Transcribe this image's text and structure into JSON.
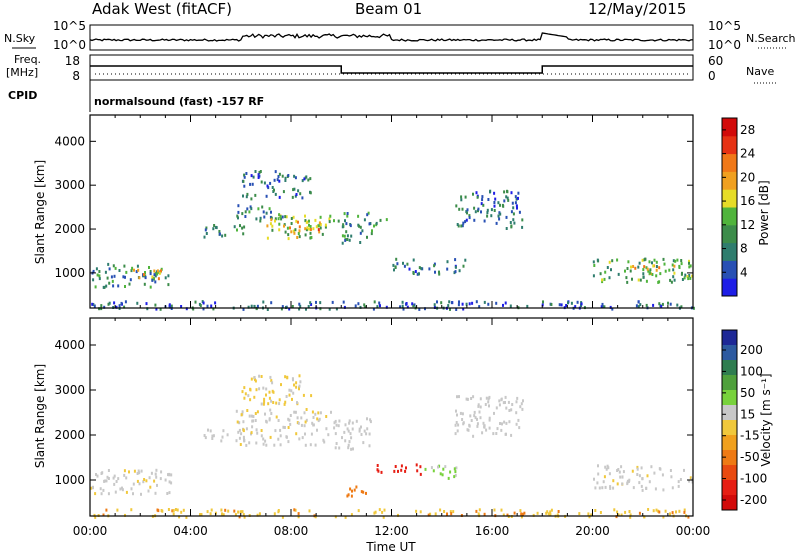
{
  "header": {
    "station": "Adak West (fitACF)",
    "beam": "Beam 01",
    "date": "12/May/2015"
  },
  "panels": {
    "nsky_label": "N.Sky",
    "nsearch_label": "N.Search",
    "freq_label_line1": "Freq.",
    "freq_label_line2": "[MHz]",
    "nave_label": "Nave",
    "cpid_label": "CPID",
    "nsky_ticks": [
      "10^5",
      "10^0"
    ],
    "nsearch_ticks": [
      "10^5",
      "10^0"
    ],
    "freq_ticks": [
      "18",
      "8"
    ],
    "nave_ticks": [
      "60",
      "0"
    ],
    "cpid_text": "normalsound (fast) -157 RF"
  },
  "colors": {
    "power_scale": [
      "#1e1ee6",
      "#2850b4",
      "#2f7d6e",
      "#3c8c4a",
      "#50b43c",
      "#e6dc28",
      "#f0a020",
      "#f07818",
      "#e63214",
      "#d20a0a"
    ],
    "velocity_scale": [
      "#1e2896",
      "#2d5aa0",
      "#2f7d50",
      "#4fa03c",
      "#78d23c",
      "#c8c8c8",
      "#f0c83c",
      "#f0a01e",
      "#ee7a14",
      "#e84a10",
      "#e61e14",
      "#d20a0a"
    ]
  },
  "chart_data": [
    {
      "type": "heatmap",
      "name": "Power",
      "ylabel": "Slant Range [km]",
      "xlabel": "",
      "x_ticks": [
        "00:00",
        "04:00",
        "08:00",
        "12:00",
        "16:00",
        "20:00",
        "00:00"
      ],
      "y_ticks": [
        1000,
        2000,
        3000,
        4000
      ],
      "ylim": [
        200,
        4600
      ],
      "xlim_hours": [
        0,
        24
      ],
      "colorbar_label": "Power [dB]",
      "colorbar_ticks": [
        4,
        8,
        12,
        16,
        20,
        24,
        28
      ],
      "colorbar_range": [
        0,
        30
      ],
      "scatter_regions": [
        {
          "t0": 0.0,
          "t1": 3.2,
          "r0": 700,
          "r1": 1250,
          "value": 9
        },
        {
          "t0": 1.5,
          "t1": 2.8,
          "r0": 900,
          "r1": 1100,
          "value": 18
        },
        {
          "t0": 4.5,
          "t1": 6.2,
          "r0": 1850,
          "r1": 2150,
          "value": 8
        },
        {
          "t0": 5.8,
          "t1": 7.8,
          "r0": 2200,
          "r1": 2600,
          "value": 9
        },
        {
          "t0": 7.0,
          "t1": 9.6,
          "r0": 1800,
          "r1": 2350,
          "value": 14
        },
        {
          "t0": 7.6,
          "t1": 9.2,
          "r0": 1950,
          "r1": 2200,
          "value": 20
        },
        {
          "t0": 6.0,
          "t1": 8.8,
          "r0": 2700,
          "r1": 3350,
          "value": 7
        },
        {
          "t0": 9.6,
          "t1": 11.2,
          "r0": 1700,
          "r1": 2400,
          "value": 10
        },
        {
          "t0": 11.0,
          "t1": 11.8,
          "r0": 2100,
          "r1": 2300,
          "value": 8
        },
        {
          "t0": 12.0,
          "t1": 15.0,
          "r0": 1000,
          "r1": 1350,
          "value": 7
        },
        {
          "t0": 14.5,
          "t1": 17.2,
          "r0": 2000,
          "r1": 2900,
          "value": 7
        },
        {
          "t0": 20.0,
          "t1": 24.0,
          "r0": 800,
          "r1": 1350,
          "value": 11
        },
        {
          "t0": 21.5,
          "t1": 23.5,
          "r0": 1000,
          "r1": 1200,
          "value": 17
        },
        {
          "t0": 0.0,
          "t1": 24.0,
          "r0": 200,
          "r1": 380,
          "value": 6
        }
      ]
    },
    {
      "type": "heatmap",
      "name": "Velocity",
      "ylabel": "Slant Range [km]",
      "xlabel": "Time UT",
      "x_ticks": [
        "00:00",
        "04:00",
        "08:00",
        "12:00",
        "16:00",
        "20:00",
        "00:00"
      ],
      "y_ticks": [
        1000,
        2000,
        3000,
        4000
      ],
      "ylim": [
        200,
        4600
      ],
      "xlim_hours": [
        0,
        24
      ],
      "colorbar_label": "Velocity [m s⁻¹]",
      "colorbar_ticks": [
        200,
        100,
        50,
        15,
        -15,
        -50,
        -100,
        -200
      ],
      "colorbar_range": [
        -250,
        250
      ],
      "scatter_regions": [
        {
          "t0": 0.0,
          "t1": 3.2,
          "r0": 700,
          "r1": 1250,
          "value": -5
        },
        {
          "t0": 4.5,
          "t1": 6.2,
          "r0": 1850,
          "r1": 2150,
          "value": 0
        },
        {
          "t0": 5.8,
          "t1": 9.6,
          "r0": 1800,
          "r1": 2600,
          "value": -5
        },
        {
          "t0": 6.0,
          "t1": 8.8,
          "r0": 2700,
          "r1": 3350,
          "value": -20
        },
        {
          "t0": 9.6,
          "t1": 11.2,
          "r0": 1700,
          "r1": 2400,
          "value": 0
        },
        {
          "t0": 10.2,
          "t1": 11.0,
          "r0": 600,
          "r1": 900,
          "value": -80
        },
        {
          "t0": 11.2,
          "t1": 13.2,
          "r0": 1150,
          "r1": 1400,
          "value": -150
        },
        {
          "t0": 13.3,
          "t1": 14.6,
          "r0": 1050,
          "r1": 1350,
          "value": 20
        },
        {
          "t0": 14.5,
          "t1": 17.2,
          "r0": 2000,
          "r1": 2900,
          "value": 0
        },
        {
          "t0": 20.0,
          "t1": 24.0,
          "r0": 800,
          "r1": 1350,
          "value": -5
        },
        {
          "t0": 0.0,
          "t1": 24.0,
          "r0": 200,
          "r1": 380,
          "value": -40
        }
      ]
    }
  ]
}
